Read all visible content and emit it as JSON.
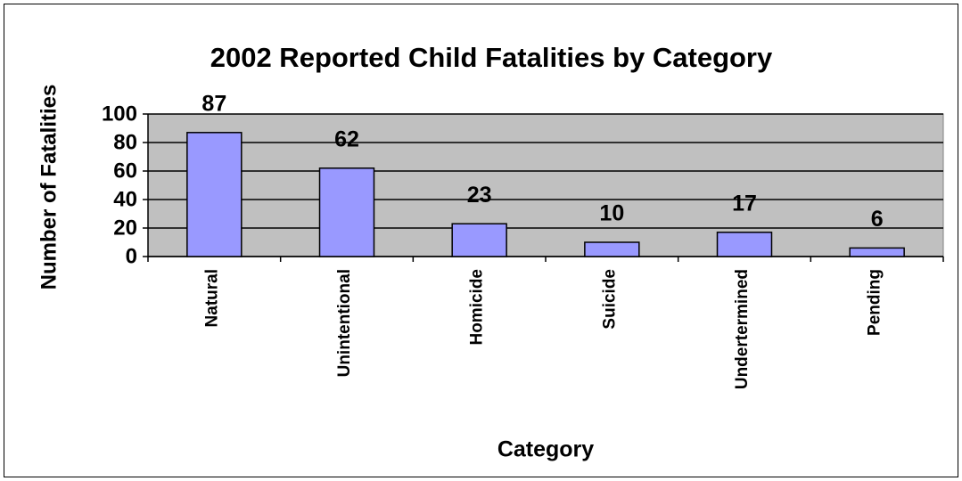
{
  "chart_data": {
    "type": "bar",
    "title": "2002 Reported Child Fatalities by Category",
    "x_label": "Category",
    "y_label": "Number of Fatalities",
    "categories": [
      "Natural",
      "Unintentional",
      "Homicide",
      "Suicide",
      "Undertermined",
      "Pending"
    ],
    "values": [
      87,
      62,
      23,
      10,
      17,
      6
    ],
    "color": "#9999ff",
    "ylim": [
      0,
      100
    ],
    "yticks": [
      0,
      20,
      40,
      60,
      80,
      100
    ],
    "grid": true,
    "data_labels": true
  }
}
